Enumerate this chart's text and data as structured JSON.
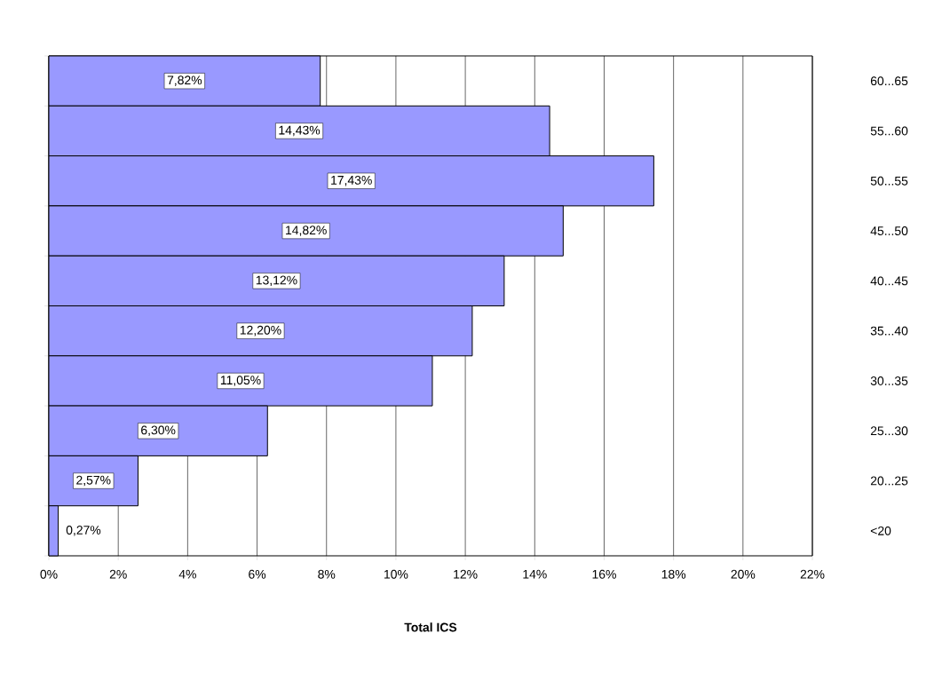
{
  "chart_data": {
    "type": "bar",
    "orientation": "horizontal",
    "xlabel": "Total ICS",
    "categories": [
      "60...65",
      "55...60",
      "50...55",
      "45...50",
      "40...45",
      "35...40",
      "30...35",
      "25...30",
      "20...25",
      "<20"
    ],
    "values": [
      7.82,
      14.43,
      17.43,
      14.82,
      13.12,
      12.2,
      11.05,
      6.3,
      2.57,
      0.27
    ],
    "value_labels": [
      "7,82%",
      "14,43%",
      "17,43%",
      "14,82%",
      "13,12%",
      "12,20%",
      "11,05%",
      "6,30%",
      "2,57%",
      "0,27%"
    ],
    "color": "#9999ff",
    "xlim": [
      0,
      22
    ],
    "xticks": [
      {
        "value": 0,
        "label": "0%"
      },
      {
        "value": 2,
        "label": "2%"
      },
      {
        "value": 4,
        "label": "4%"
      },
      {
        "value": 6,
        "label": "6%"
      },
      {
        "value": 8,
        "label": "8%"
      },
      {
        "value": 10,
        "label": "10%"
      },
      {
        "value": 12,
        "label": "12%"
      },
      {
        "value": 14,
        "label": "14%"
      },
      {
        "value": 16,
        "label": "16%"
      },
      {
        "value": 18,
        "label": "18%"
      },
      {
        "value": 20,
        "label": "20%"
      },
      {
        "value": 22,
        "label": "22%"
      }
    ],
    "grid": "x"
  }
}
